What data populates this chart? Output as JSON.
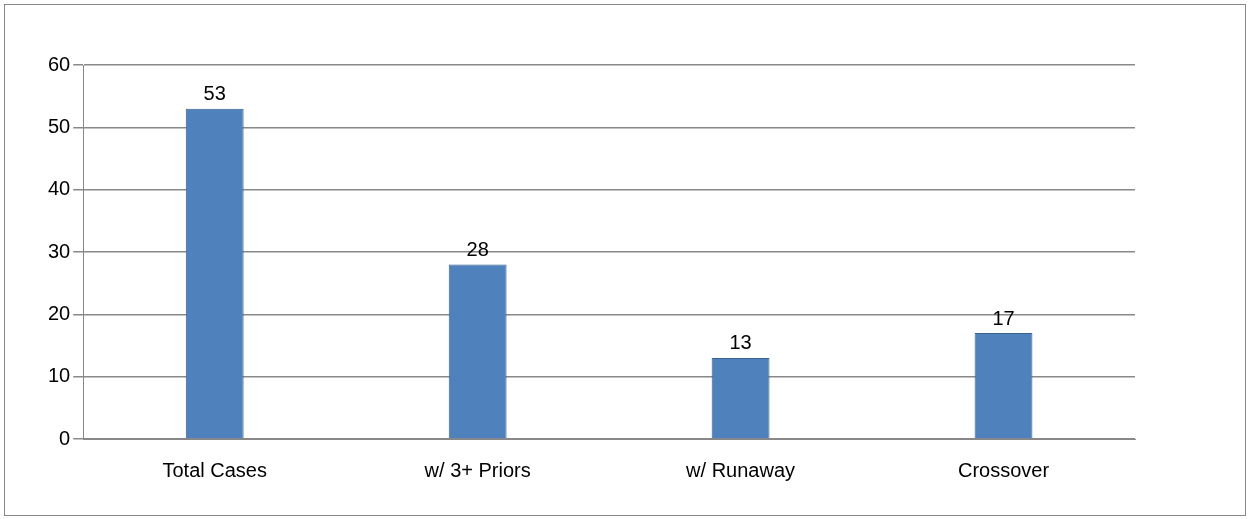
{
  "chart_data": {
    "type": "bar",
    "categories": [
      "Total Cases",
      "w/ 3+ Priors",
      "w/ Runaway",
      "Crossover"
    ],
    "values": [
      53,
      28,
      13,
      17
    ],
    "color": "#4f81bd",
    "ylim": [
      0,
      60
    ],
    "yticks": [
      0,
      10,
      20,
      30,
      40,
      50,
      60
    ],
    "grid": "y",
    "data_labels": true
  }
}
